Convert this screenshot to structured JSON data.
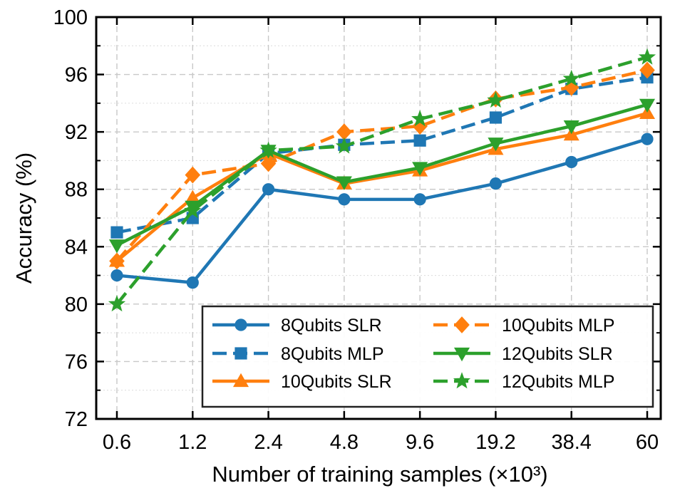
{
  "chart_data": {
    "type": "line",
    "title": "",
    "xlabel": "Number of training samples (×10³)",
    "ylabel": "Accuracy (%)",
    "categories": [
      "0.6",
      "1.2",
      "2.4",
      "4.8",
      "9.6",
      "19.2",
      "38.4",
      "60"
    ],
    "ylim": [
      72,
      100
    ],
    "yticks": [
      "72",
      "76",
      "80",
      "84",
      "88",
      "92",
      "96",
      "100"
    ],
    "grid": true,
    "legend_position": "bottom-right",
    "series": [
      {
        "name": "8Qubits SLR",
        "color": "#1f77b4",
        "marker": "circle",
        "dashed": false,
        "values": [
          82.0,
          81.5,
          88.0,
          87.3,
          87.3,
          88.4,
          89.9,
          91.5
        ]
      },
      {
        "name": "8Qubits MLP",
        "color": "#1f77b4",
        "marker": "square",
        "dashed": true,
        "values": [
          85.0,
          86.0,
          90.5,
          91.1,
          91.4,
          93.0,
          95.0,
          95.8
        ]
      },
      {
        "name": "10Qubits SLR",
        "color": "#ff7f0e",
        "marker": "triangle-up",
        "dashed": false,
        "values": [
          83.0,
          87.4,
          90.5,
          88.4,
          89.3,
          90.8,
          91.8,
          93.3
        ]
      },
      {
        "name": "10Qubits MLP",
        "color": "#ff7f0e",
        "marker": "diamond",
        "dashed": true,
        "values": [
          83.0,
          89.0,
          89.8,
          92.0,
          92.4,
          94.3,
          95.1,
          96.3
        ]
      },
      {
        "name": "12Qubits SLR",
        "color": "#2ca02c",
        "marker": "triangle-down",
        "dashed": false,
        "values": [
          84.1,
          86.8,
          90.7,
          88.5,
          89.5,
          91.2,
          92.4,
          93.9
        ]
      },
      {
        "name": "12Qubits MLP",
        "color": "#2ca02c",
        "marker": "star",
        "dashed": true,
        "values": [
          80.0,
          86.5,
          90.7,
          91.0,
          92.9,
          94.2,
          95.7,
          97.2
        ]
      }
    ]
  }
}
